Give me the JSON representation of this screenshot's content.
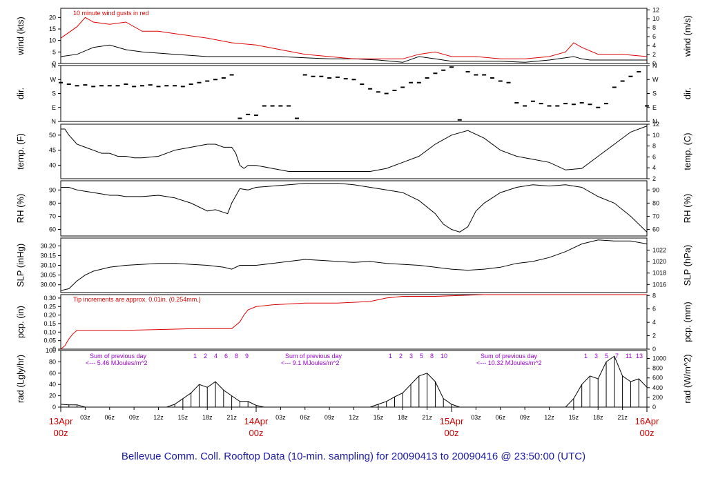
{
  "footer": "Bellevue Comm. Coll. Rooftop Data (10-min. sampling) for 20090413  to  20090416 @ 23:50:00  (UTC)",
  "colors": {
    "red": "#dd0000",
    "purple": "#9900cc",
    "blue": "#1a1aa6",
    "black": "#000000"
  },
  "time_axis": {
    "hour_labels": [
      "03z",
      "06z",
      "09z",
      "12z",
      "15z",
      "18z",
      "21z"
    ],
    "day_labels": [
      {
        "date": "13Apr",
        "hour": "00z",
        "day": 0
      },
      {
        "date": "14Apr",
        "hour": "00z",
        "day": 1
      },
      {
        "date": "15Apr",
        "hour": "00z",
        "day": 2
      },
      {
        "date": "16Apr",
        "hour": "00z",
        "day": 3
      }
    ]
  },
  "chart_data": [
    {
      "type": "line",
      "id": "wind",
      "ylabel_left": "wind (kts)",
      "ylabel_right": "wind (m/s)",
      "yticks_left": [
        "0",
        "5",
        "10",
        "15",
        "20"
      ],
      "yticks_right": [
        "0",
        "2",
        "4",
        "6",
        "8",
        "10",
        "12"
      ],
      "ylim": [
        0,
        24
      ],
      "right_ylim": [
        0,
        12.35
      ],
      "annotation": "10  minute wind gusts in red",
      "series": [
        {
          "role": "sustained",
          "color": "#000000",
          "x": [
            0,
            2,
            4,
            6,
            8,
            10,
            14,
            18,
            21,
            24,
            27,
            30,
            33,
            36,
            39,
            42,
            44,
            46,
            48,
            51,
            54,
            57,
            60,
            62,
            63,
            64,
            65,
            66,
            69,
            72
          ],
          "y": [
            3,
            4,
            7,
            8,
            6,
            5,
            4,
            3,
            3,
            3,
            3,
            2.5,
            2,
            2,
            1.5,
            0.5,
            3,
            2,
            1,
            1,
            1,
            0.5,
            1.5,
            2.5,
            3,
            2,
            1.5,
            1.5,
            1.5,
            1.5
          ]
        },
        {
          "role": "gust",
          "color": "#dd0000",
          "x": [
            0,
            2,
            3,
            4,
            6,
            8,
            10,
            12,
            14,
            16,
            18,
            21,
            24,
            27,
            30,
            33,
            36,
            39,
            42,
            44,
            46,
            48,
            51,
            54,
            57,
            60,
            62,
            63,
            64,
            66,
            69,
            72
          ],
          "y": [
            11,
            16,
            20,
            18,
            17,
            18,
            14,
            14,
            13,
            12,
            11,
            9,
            8,
            6,
            4,
            3,
            2,
            2,
            2,
            4,
            5,
            3,
            3,
            2,
            2,
            3,
            5,
            9,
            7,
            4,
            4,
            3
          ]
        }
      ]
    },
    {
      "type": "scatter",
      "id": "dir",
      "ylabel_left": "dir.",
      "ylabel_right": "dir.",
      "yticks_left": [
        "N",
        "E",
        "S",
        "W",
        "N"
      ],
      "yticks_right": [
        "N",
        "E",
        "S",
        "W",
        "N"
      ],
      "ylim": [
        0,
        360
      ],
      "x": [
        0,
        1,
        2,
        3,
        4,
        5,
        6,
        7,
        8,
        9,
        10,
        11,
        12,
        13,
        14,
        15,
        16,
        17,
        18,
        19,
        20,
        21,
        22,
        23,
        24,
        25,
        26,
        27,
        28,
        29,
        30,
        31,
        32,
        33,
        34,
        35,
        36,
        37,
        38,
        39,
        40,
        41,
        42,
        43,
        44,
        45,
        46,
        47,
        48,
        49,
        50,
        51,
        52,
        53,
        54,
        55,
        56,
        57,
        58,
        59,
        60,
        61,
        62,
        63,
        64,
        65,
        66,
        67,
        68,
        69,
        70,
        71,
        72
      ],
      "y": [
        250,
        240,
        230,
        235,
        225,
        230,
        230,
        230,
        240,
        225,
        230,
        235,
        225,
        230,
        230,
        225,
        240,
        250,
        260,
        270,
        280,
        300,
        20,
        45,
        40,
        100,
        100,
        100,
        100,
        20,
        300,
        290,
        290,
        280,
        285,
        275,
        270,
        240,
        210,
        190,
        180,
        200,
        220,
        250,
        250,
        280,
        310,
        330,
        350,
        10,
        320,
        300,
        300,
        280,
        260,
        250,
        120,
        100,
        130,
        115,
        100,
        100,
        115,
        110,
        120,
        110,
        90,
        115,
        220,
        260,
        290,
        320,
        100
      ]
    },
    {
      "type": "line",
      "id": "temp",
      "ylabel_left": "temp. (F)",
      "ylabel_right": "temp. (C)",
      "yticks_left": [
        "40",
        "45",
        "50"
      ],
      "yticks_right": [
        "2",
        "4",
        "6",
        "8",
        "10",
        "12"
      ],
      "ylim": [
        35.6,
        53.6
      ],
      "right_ylim": [
        2,
        12
      ],
      "x": [
        0,
        0.5,
        1,
        2,
        3,
        4,
        5,
        6,
        7,
        8,
        9,
        10,
        12,
        14,
        16,
        18,
        19,
        20,
        21,
        21.5,
        22,
        22.5,
        23,
        24,
        26,
        28,
        30,
        32,
        34,
        36,
        38,
        40,
        42,
        44,
        46,
        48,
        50,
        52,
        54,
        56,
        58,
        60,
        62,
        64,
        66,
        68,
        70,
        72
      ],
      "y": [
        52,
        52,
        50,
        47,
        46,
        45,
        44,
        44,
        43,
        43,
        42.5,
        42.5,
        43,
        45,
        46,
        47,
        47,
        46,
        46,
        44,
        40,
        39,
        40,
        40,
        39,
        38,
        38,
        38,
        38,
        38,
        38,
        39,
        41,
        43,
        47,
        50,
        51.5,
        49,
        45,
        43,
        42,
        41,
        38.5,
        39,
        43,
        47,
        51,
        53
      ]
    },
    {
      "type": "line",
      "id": "rh",
      "ylabel_left": "RH (%)",
      "ylabel_right": "RH (%)",
      "yticks_left": [
        "60",
        "70",
        "80",
        "90"
      ],
      "yticks_right": [
        "60",
        "70",
        "80",
        "90"
      ],
      "ylim": [
        55,
        97
      ],
      "x": [
        0,
        1,
        2,
        3,
        4,
        5,
        6,
        7,
        8,
        10,
        12,
        14,
        16,
        18,
        19,
        20,
        20.5,
        21,
        22,
        23,
        24,
        26,
        28,
        30,
        32,
        34,
        36,
        38,
        40,
        42,
        44,
        46,
        47,
        48,
        49,
        50,
        51,
        52,
        54,
        56,
        58,
        60,
        62,
        64,
        66,
        68,
        70,
        72
      ],
      "y": [
        92,
        92,
        90,
        89,
        88,
        87,
        86,
        86,
        85,
        85,
        86,
        84,
        80,
        74,
        75,
        73,
        72,
        80,
        91,
        90,
        92,
        93,
        94,
        95,
        95,
        95,
        94,
        92,
        90,
        88,
        82,
        72,
        64,
        60,
        58,
        62,
        74,
        80,
        88,
        92,
        94,
        93,
        94,
        92,
        85,
        80,
        70,
        58
      ]
    },
    {
      "type": "line",
      "id": "slp",
      "ylabel_left": "SLP (inHg)",
      "ylabel_right": "SLP (hPa)",
      "yticks_left": [
        "30.00",
        "30.05",
        "30.10",
        "30.15",
        "30.20"
      ],
      "yticks_right": [
        "1016",
        "1018",
        "1020",
        "1022"
      ],
      "ylim": [
        29.96,
        30.24
      ],
      "right_ylim": [
        1014.6,
        1024.1
      ],
      "x": [
        0,
        1,
        2,
        3,
        4,
        6,
        8,
        10,
        12,
        14,
        16,
        18,
        20,
        21,
        22,
        24,
        26,
        28,
        30,
        32,
        34,
        36,
        38,
        40,
        42,
        44,
        46,
        48,
        50,
        52,
        54,
        56,
        58,
        60,
        62,
        64,
        66,
        68,
        70,
        72
      ],
      "y": [
        29.97,
        29.98,
        30.02,
        30.05,
        30.07,
        30.09,
        30.1,
        30.105,
        30.11,
        30.11,
        30.105,
        30.1,
        30.09,
        30.08,
        30.1,
        30.1,
        30.11,
        30.12,
        30.13,
        30.125,
        30.12,
        30.115,
        30.12,
        30.11,
        30.105,
        30.1,
        30.09,
        30.08,
        30.075,
        30.08,
        30.09,
        30.11,
        30.12,
        30.14,
        30.17,
        30.21,
        30.23,
        30.225,
        30.225,
        30.21
      ]
    },
    {
      "type": "line",
      "id": "pcp",
      "ylabel_left": "pcp. (in)",
      "ylabel_right": "pcp. (mm)",
      "yticks_left": [
        "0",
        "0.05",
        "0.10",
        "0.15",
        "0.20",
        "0.25",
        "0.30"
      ],
      "yticks_right": [
        "0",
        "2",
        "4",
        "6",
        "8"
      ],
      "ylim": [
        0,
        0.32
      ],
      "right_ylim": [
        0,
        8.13
      ],
      "annotation": "Tip increments are approx. 0.01in. (0.254mm.)",
      "x": [
        0,
        0.5,
        1,
        1.5,
        2,
        8,
        16,
        21,
        22,
        22.5,
        23,
        24,
        26,
        30,
        34,
        38,
        40,
        42,
        46,
        52,
        58,
        64,
        72
      ],
      "y": [
        0,
        0.02,
        0.06,
        0.09,
        0.11,
        0.11,
        0.12,
        0.12,
        0.16,
        0.2,
        0.23,
        0.25,
        0.26,
        0.27,
        0.27,
        0.28,
        0.3,
        0.31,
        0.31,
        0.32,
        0.32,
        0.32,
        0.32
      ]
    },
    {
      "type": "area",
      "id": "rad",
      "ylabel_left": "rad (Lgly/hr)",
      "ylabel_right": "rad (W/m^2)",
      "yticks_left": [
        "0",
        "20",
        "40",
        "60",
        "80",
        "100"
      ],
      "yticks_right": [
        "0",
        "200",
        "400",
        "600",
        "800",
        "1000"
      ],
      "ylim": [
        0,
        100
      ],
      "right_ylim": [
        0,
        1163
      ],
      "x": [
        0,
        1,
        2,
        3,
        4,
        5,
        6,
        7,
        8,
        9,
        10,
        11,
        12,
        13,
        14,
        15,
        16,
        17,
        18,
        19,
        20,
        21,
        22,
        23,
        24,
        25,
        26,
        27,
        28,
        29,
        30,
        31,
        32,
        33,
        34,
        35,
        36,
        37,
        38,
        39,
        40,
        41,
        42,
        43,
        44,
        45,
        46,
        47,
        48,
        49,
        50,
        51,
        52,
        53,
        54,
        55,
        56,
        57,
        58,
        59,
        60,
        61,
        62,
        63,
        64,
        65,
        66,
        67,
        68,
        69,
        70,
        71,
        72
      ],
      "y": [
        5,
        4,
        4,
        0,
        0,
        0,
        0,
        0,
        0,
        0,
        0,
        0,
        0,
        0,
        5,
        15,
        25,
        40,
        35,
        45,
        30,
        20,
        10,
        10,
        3,
        0,
        0,
        0,
        0,
        0,
        0,
        0,
        0,
        0,
        0,
        0,
        0,
        0,
        0,
        5,
        10,
        18,
        25,
        40,
        55,
        60,
        45,
        15,
        5,
        0,
        0,
        0,
        0,
        0,
        0,
        0,
        0,
        0,
        0,
        0,
        0,
        0,
        0,
        15,
        40,
        55,
        50,
        80,
        90,
        55,
        45,
        50,
        35
      ],
      "notes": [
        {
          "day": 0,
          "line1": "Sum of previous day",
          "line2": "<--- 5.46 MJoules/m^2"
        },
        {
          "day": 1,
          "line1": "Sum of previous day",
          "line2": "<--- 9.1 MJoules/m^2"
        },
        {
          "day": 2,
          "line1": "Sum of previous day",
          "line2": "<--- 10.32 MJoules/m^2"
        }
      ],
      "hour_markers": [
        {
          "day": 0,
          "labels": [
            "1",
            "2",
            "4",
            "6",
            "8",
            "9"
          ]
        },
        {
          "day": 1,
          "labels": [
            "1",
            "2",
            "3",
            "5",
            "8",
            "10"
          ]
        },
        {
          "day": 2,
          "labels": [
            "1",
            "3",
            "5",
            "7",
            "11",
            "13"
          ]
        }
      ]
    }
  ]
}
